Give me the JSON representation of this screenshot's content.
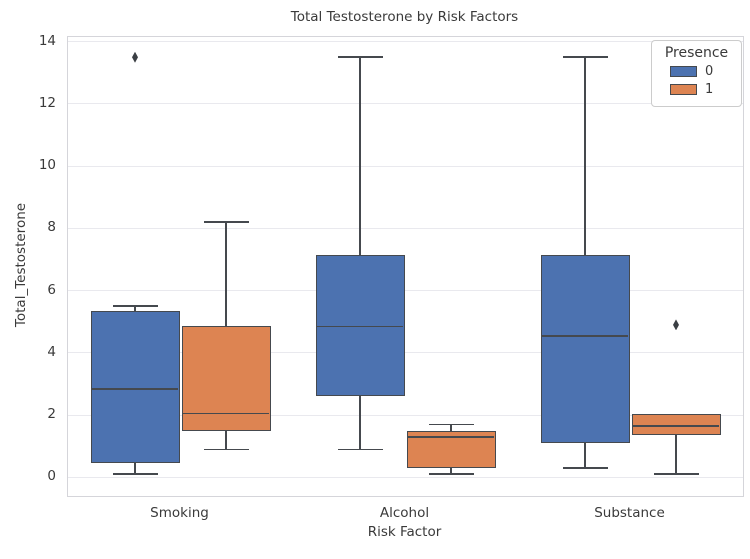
{
  "chart_data": {
    "type": "boxplot",
    "title": "Total Testosterone by Risk Factors",
    "xlabel": "Risk Factor",
    "ylabel": "Total_Testosterone",
    "categories": [
      "Smoking",
      "Alcohol",
      "Substance"
    ],
    "yticks": [
      0,
      2,
      4,
      6,
      8,
      10,
      12,
      14
    ],
    "ylim": [
      -0.6,
      14.15
    ],
    "grid": "horizontal",
    "legend": {
      "title": "Presence",
      "position": "upper-right",
      "entries": [
        {
          "label": "0",
          "color": "#4C72B0"
        },
        {
          "label": "1",
          "color": "#DD8452"
        }
      ]
    },
    "colors": {
      "box_edge": "#45494e",
      "grid": "#e9e9ee",
      "frame": "#d5d5da",
      "text": "#3a3a3a",
      "outlier": "#3b3f44",
      "background": "#ffffff"
    },
    "series": [
      {
        "name": "0",
        "color": "#4C72B0",
        "boxes": [
          {
            "category": "Smoking",
            "whisker_low": 0.1,
            "q1": 0.45,
            "median": 2.85,
            "q3": 5.35,
            "whisker_high": 5.5,
            "outliers": [
              13.5
            ]
          },
          {
            "category": "Alcohol",
            "whisker_low": 0.9,
            "q1": 2.6,
            "median": 4.85,
            "q3": 7.15,
            "whisker_high": 13.5,
            "outliers": []
          },
          {
            "category": "Substance",
            "whisker_low": 0.3,
            "q1": 1.1,
            "median": 4.55,
            "q3": 7.15,
            "whisker_high": 13.5,
            "outliers": []
          }
        ]
      },
      {
        "name": "1",
        "color": "#DD8452",
        "boxes": [
          {
            "category": "Smoking",
            "whisker_low": 0.9,
            "q1": 1.5,
            "median": 2.05,
            "q3": 4.85,
            "whisker_high": 8.2,
            "outliers": []
          },
          {
            "category": "Alcohol",
            "whisker_low": 0.1,
            "q1": 0.3,
            "median": 1.3,
            "q3": 1.5,
            "whisker_high": 1.7,
            "outliers": []
          },
          {
            "category": "Substance",
            "whisker_low": 0.1,
            "q1": 1.35,
            "median": 1.65,
            "q3": 2.05,
            "whisker_high": 2.05,
            "outliers": [
              4.9
            ]
          }
        ]
      }
    ]
  }
}
